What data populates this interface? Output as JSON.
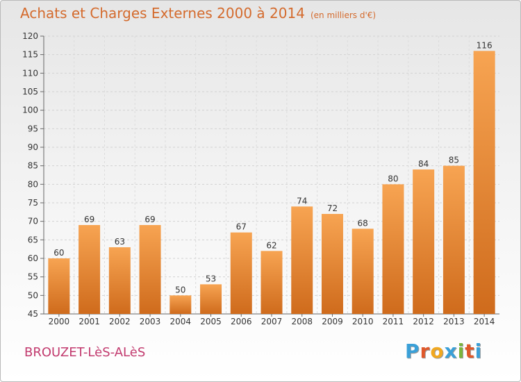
{
  "header": {
    "title": "Achats et Charges Externes 2000 à 2014",
    "unit": "(en milliers d'€)"
  },
  "footer": {
    "commune": "BROUZET-LèS-ALèS",
    "logo_letters": [
      "P",
      "r",
      "o",
      "x",
      "i",
      "t",
      "i"
    ],
    "logo_colors": [
      "#3aa0d8",
      "#e0582a",
      "#f1a820",
      "#3aa0d8",
      "#7ab43c",
      "#e0582a",
      "#3aa0d8"
    ]
  },
  "colors": {
    "bar_light": "#f7a452",
    "bar_dark": "#cf6b1c",
    "title": "#d46a2c"
  },
  "chart_data": {
    "type": "bar",
    "title": "Achats et Charges Externes 2000 à 2014",
    "categories": [
      "2000",
      "2001",
      "2002",
      "2003",
      "2004",
      "2005",
      "2006",
      "2007",
      "2008",
      "2009",
      "2010",
      "2011",
      "2012",
      "2013",
      "2014"
    ],
    "values": [
      60,
      69,
      63,
      69,
      50,
      53,
      67,
      62,
      74,
      72,
      68,
      80,
      84,
      85,
      116
    ],
    "ylim": [
      45,
      120
    ],
    "yticks": [
      45,
      50,
      55,
      60,
      65,
      70,
      75,
      80,
      85,
      90,
      95,
      100,
      105,
      110,
      115,
      120
    ],
    "grid": true,
    "legend": "none"
  }
}
